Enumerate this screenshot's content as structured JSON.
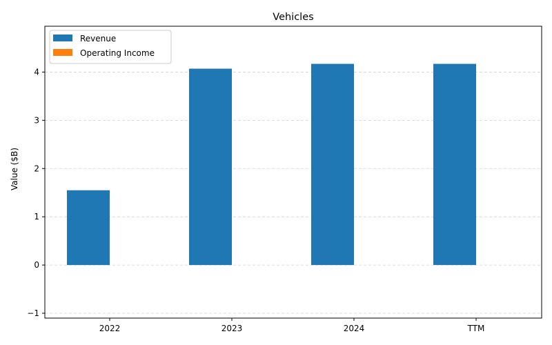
{
  "chart_data": {
    "type": "bar",
    "title": "Vehicles",
    "xlabel": "",
    "ylabel": "Value ($B)",
    "categories": [
      "2022",
      "2023",
      "2024",
      "TTM"
    ],
    "series": [
      {
        "name": "Revenue",
        "color": "#1f77b4",
        "values": [
          1.55,
          4.07,
          4.17,
          4.17
        ]
      },
      {
        "name": "Operating Income",
        "color": "#ff7f0e",
        "values": [
          0,
          0,
          0,
          0
        ]
      }
    ],
    "ylim": [
      -1.1,
      4.95
    ],
    "yticks": [
      -1,
      0,
      1,
      2,
      3,
      4
    ],
    "grid": true,
    "legend_position": "top-left"
  }
}
